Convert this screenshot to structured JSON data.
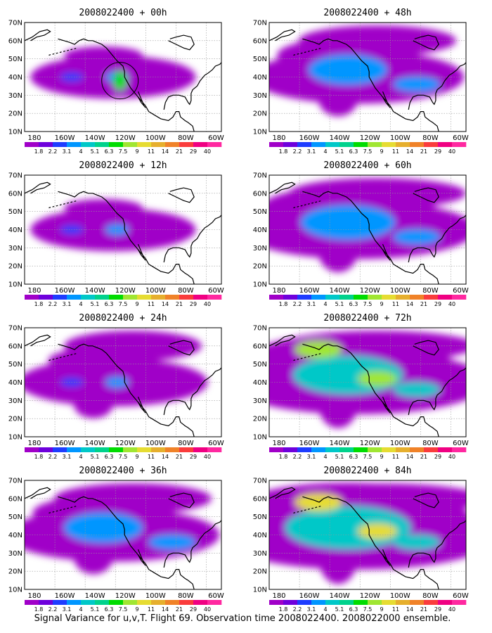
{
  "panels": [
    {
      "title": "2008022400 + 00h"
    },
    {
      "title": "2008022400 + 48h"
    },
    {
      "title": "2008022400 + 12h"
    },
    {
      "title": "2008022400 + 60h"
    },
    {
      "title": "2008022400 + 24h"
    },
    {
      "title": "2008022400 + 72h"
    },
    {
      "title": "2008022400 + 36h"
    },
    {
      "title": "2008022400 + 84h"
    }
  ],
  "lat_labels": [
    "10N",
    "20N",
    "30N",
    "40N",
    "50N",
    "60N",
    "70N"
  ],
  "lon_labels": [
    "180",
    "160W",
    "140W",
    "120W",
    "100W",
    "80W",
    "60W"
  ],
  "colorbar": {
    "labels": [
      "1.8",
      "2.2",
      "3.1",
      "4",
      "5.1",
      "6.3",
      "7.5",
      "9",
      "11",
      "14",
      "21",
      "29",
      "40"
    ],
    "colors": [
      "#a000c8",
      "#6e00dc",
      "#1e3cff",
      "#0096ff",
      "#00c8c8",
      "#00d28c",
      "#00dc00",
      "#a0e632",
      "#e6dc32",
      "#e6af2d",
      "#f08228",
      "#fa3c3c",
      "#f00082",
      "#ff28a0"
    ]
  },
  "caption": "Signal Variance for u,v,T. Flight 69. Observation time 2008022400. 2008022000 ensemble."
}
